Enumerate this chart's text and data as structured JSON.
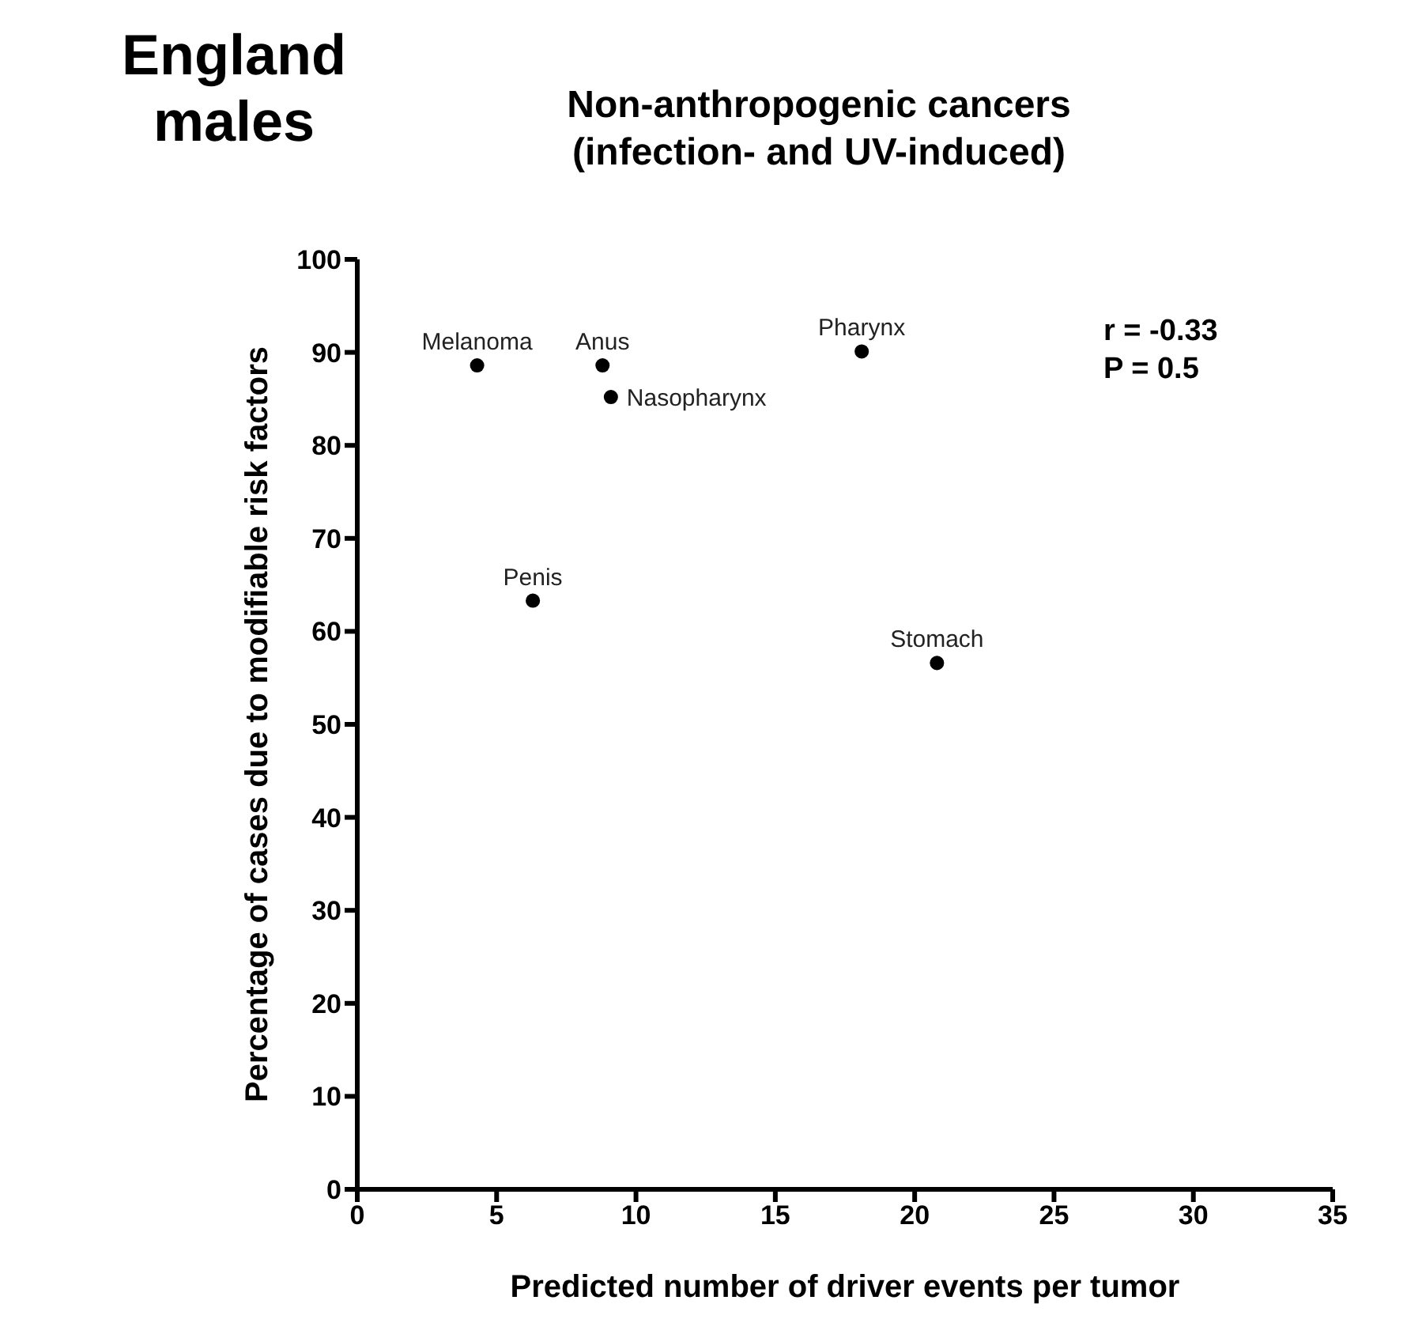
{
  "chart_data": {
    "type": "scatter",
    "title": "England males",
    "subtitle": "Non-anthropogenic cancers\n(infection- and UV-induced)",
    "xlabel": "Predicted number of driver events per tumor",
    "ylabel": "Percentage of cases due to modifiable risk factors",
    "x": [
      4.3,
      8.8,
      9.1,
      18.1,
      6.3,
      20.8
    ],
    "series": [
      {
        "color": "#000000",
        "values": [
          88.6,
          88.6,
          85.2,
          90.1,
          63.3,
          56.6
        ]
      }
    ],
    "xlim": [
      0,
      35
    ],
    "xticks": [
      0,
      5,
      10,
      15,
      20,
      25,
      30,
      35
    ],
    "ylim": [
      0,
      100
    ],
    "yticks": [
      0,
      10,
      20,
      30,
      40,
      50,
      60,
      70,
      80,
      90,
      100
    ],
    "grid": false,
    "legend": false,
    "marker": "circle",
    "annotations": [
      {
        "text": "Melanoma",
        "x": 4.3,
        "y": 88.6
      },
      {
        "text": "Anus",
        "x": 8.8,
        "y": 88.6
      },
      {
        "text": "Nasopharynx",
        "x": 9.1,
        "y": 85.2
      },
      {
        "text": "Pharynx",
        "x": 18.1,
        "y": 90.1
      },
      {
        "text": "Penis",
        "x": 6.3,
        "y": 63.3
      },
      {
        "text": "Stomach",
        "x": 20.8,
        "y": 56.6
      },
      "r = -0.33\nP = 0.5"
    ]
  }
}
